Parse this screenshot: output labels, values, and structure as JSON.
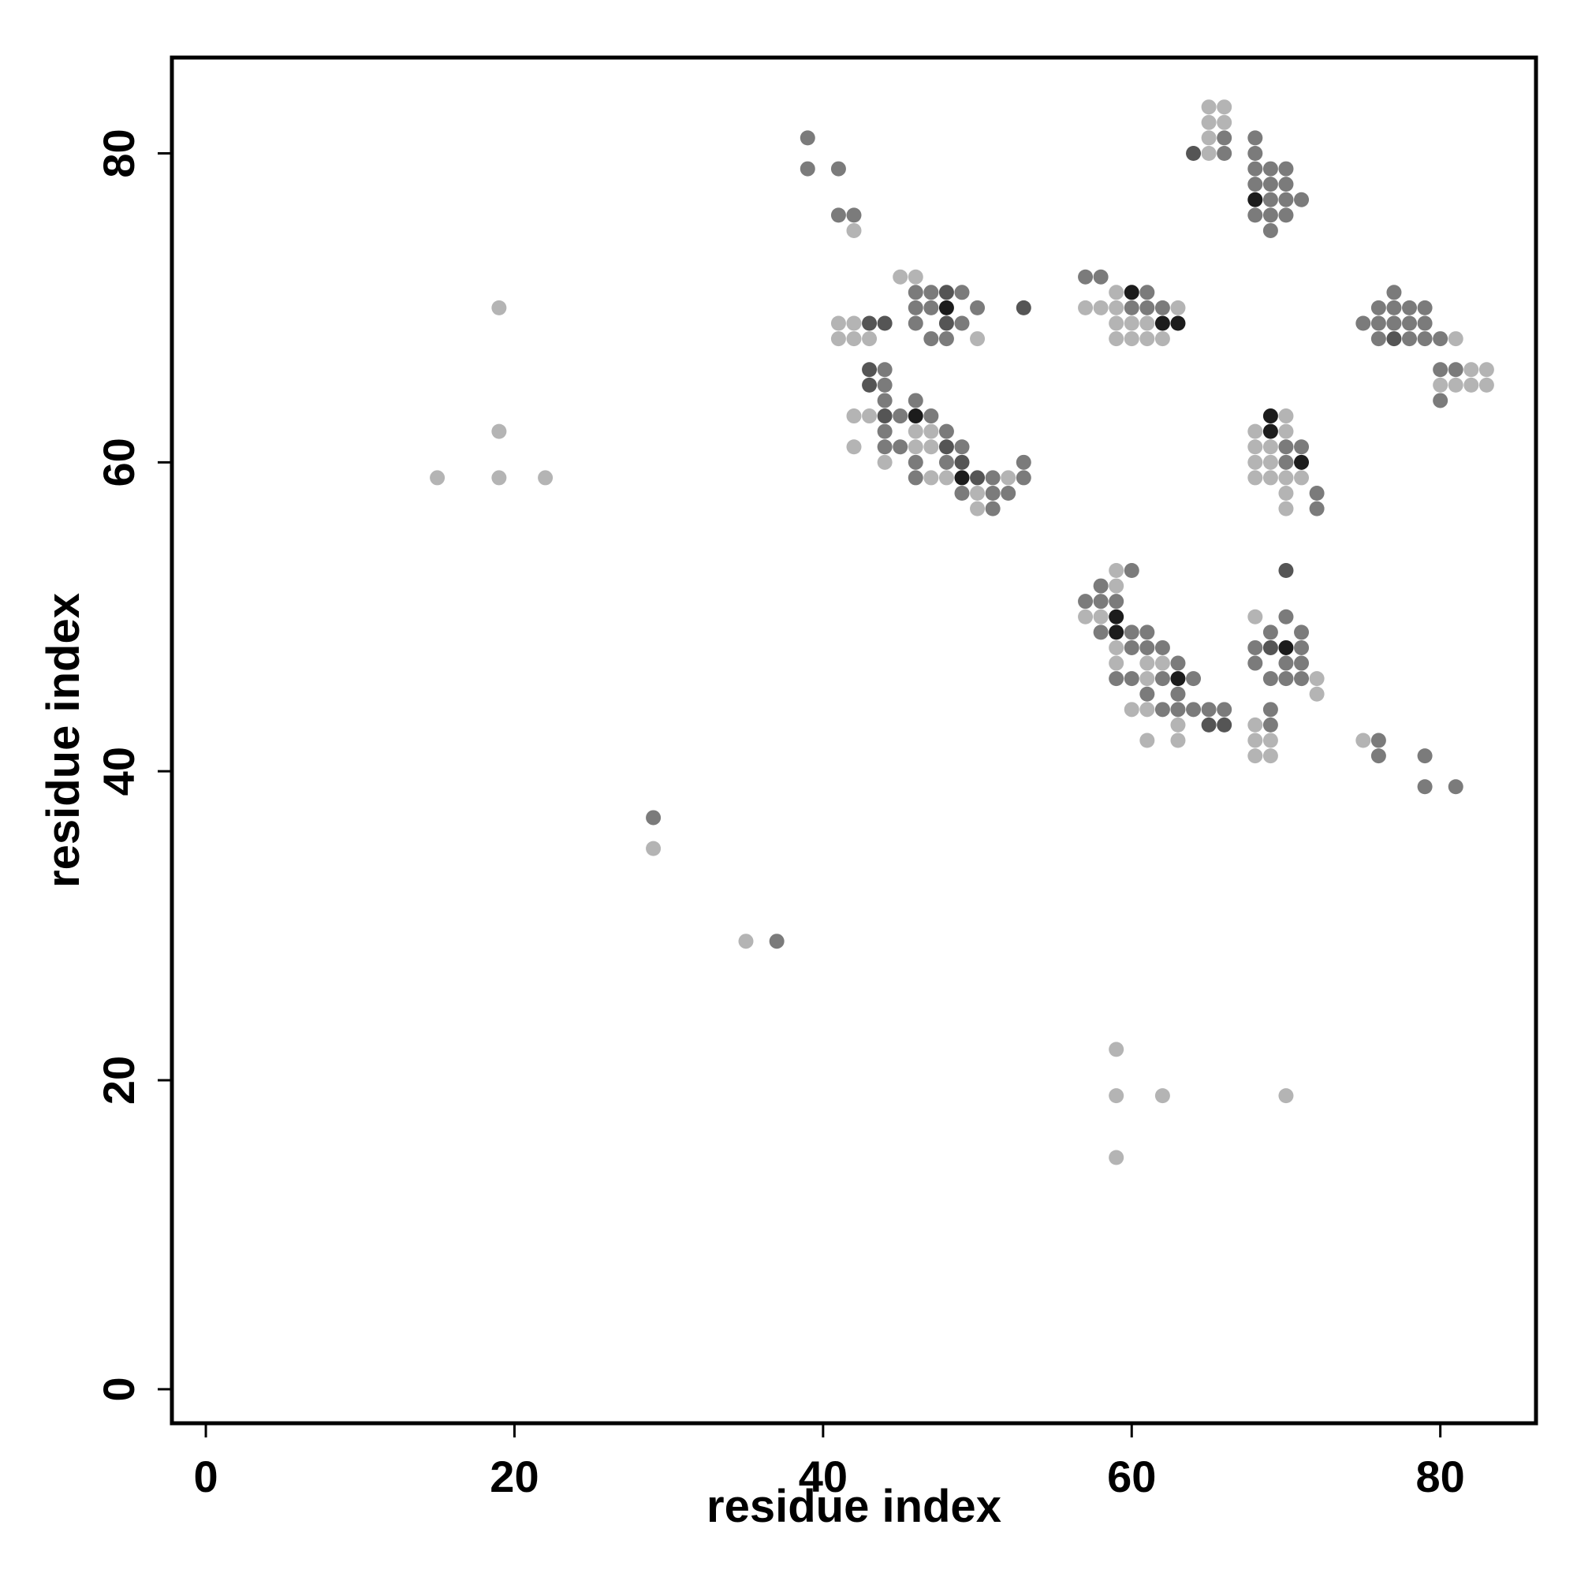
{
  "chart_data": {
    "type": "scatter",
    "title": "",
    "xlabel": "residue index",
    "ylabel": "residue index",
    "xlim": [
      -2.2,
      86.2
    ],
    "ylim": [
      -2.2,
      86.2
    ],
    "xticks": [
      0,
      20,
      40,
      60,
      80
    ],
    "yticks": [
      0,
      20,
      40,
      60,
      80
    ],
    "grid": false,
    "legend": "none",
    "point_shading_levels": {
      "1": "#b4b4b4",
      "2": "#7b7b7b",
      "3": "#555555",
      "4": "#1c1c1c"
    },
    "points": [
      [
        15,
        59,
        1
      ],
      [
        19,
        59,
        1
      ],
      [
        22,
        59,
        1
      ],
      [
        19,
        62,
        1
      ],
      [
        19,
        70,
        1
      ],
      [
        29,
        37,
        2
      ],
      [
        29,
        35,
        1
      ],
      [
        35,
        29,
        1
      ],
      [
        37,
        29,
        2
      ],
      [
        59,
        22,
        1
      ],
      [
        59,
        19,
        1
      ],
      [
        62,
        19,
        1
      ],
      [
        70,
        19,
        1
      ],
      [
        59,
        15,
        1
      ],
      [
        39,
        81,
        2
      ],
      [
        39,
        79,
        2
      ],
      [
        41,
        79,
        2
      ],
      [
        41,
        76,
        2
      ],
      [
        42,
        76,
        2
      ],
      [
        42,
        75,
        1
      ],
      [
        45,
        72,
        1
      ],
      [
        46,
        72,
        1
      ],
      [
        46,
        71,
        2
      ],
      [
        47,
        71,
        2
      ],
      [
        48,
        71,
        3
      ],
      [
        49,
        71,
        2
      ],
      [
        46,
        70,
        2
      ],
      [
        47,
        70,
        2
      ],
      [
        48,
        70,
        4
      ],
      [
        50,
        70,
        2
      ],
      [
        53,
        70,
        3
      ],
      [
        41,
        69,
        1
      ],
      [
        42,
        69,
        1
      ],
      [
        43,
        69,
        3
      ],
      [
        44,
        69,
        3
      ],
      [
        46,
        69,
        2
      ],
      [
        48,
        69,
        3
      ],
      [
        49,
        69,
        2
      ],
      [
        41,
        68,
        1
      ],
      [
        42,
        68,
        1
      ],
      [
        43,
        68,
        1
      ],
      [
        47,
        68,
        2
      ],
      [
        48,
        68,
        2
      ],
      [
        50,
        68,
        1
      ],
      [
        43,
        66,
        3
      ],
      [
        44,
        66,
        2
      ],
      [
        43,
        65,
        3
      ],
      [
        44,
        65,
        2
      ],
      [
        44,
        64,
        2
      ],
      [
        46,
        64,
        2
      ],
      [
        42,
        63,
        1
      ],
      [
        43,
        63,
        1
      ],
      [
        44,
        63,
        3
      ],
      [
        45,
        63,
        2
      ],
      [
        46,
        63,
        4
      ],
      [
        47,
        63,
        2
      ],
      [
        44,
        62,
        2
      ],
      [
        46,
        62,
        1
      ],
      [
        47,
        62,
        1
      ],
      [
        48,
        62,
        2
      ],
      [
        42,
        61,
        1
      ],
      [
        44,
        61,
        2
      ],
      [
        45,
        61,
        2
      ],
      [
        46,
        61,
        1
      ],
      [
        47,
        61,
        1
      ],
      [
        48,
        61,
        3
      ],
      [
        49,
        61,
        2
      ],
      [
        44,
        60,
        1
      ],
      [
        46,
        60,
        2
      ],
      [
        48,
        60,
        2
      ],
      [
        49,
        60,
        3
      ],
      [
        53,
        60,
        2
      ],
      [
        46,
        59,
        2
      ],
      [
        47,
        59,
        1
      ],
      [
        48,
        59,
        1
      ],
      [
        49,
        59,
        4
      ],
      [
        50,
        59,
        3
      ],
      [
        51,
        59,
        2
      ],
      [
        52,
        59,
        1
      ],
      [
        53,
        59,
        2
      ],
      [
        49,
        58,
        2
      ],
      [
        50,
        58,
        1
      ],
      [
        51,
        58,
        2
      ],
      [
        52,
        58,
        2
      ],
      [
        50,
        57,
        1
      ],
      [
        51,
        57,
        2
      ],
      [
        57,
        72,
        2
      ],
      [
        58,
        72,
        2
      ],
      [
        59,
        71,
        1
      ],
      [
        60,
        71,
        4
      ],
      [
        61,
        71,
        2
      ],
      [
        57,
        70,
        1
      ],
      [
        58,
        70,
        1
      ],
      [
        59,
        70,
        1
      ],
      [
        60,
        70,
        2
      ],
      [
        61,
        70,
        2
      ],
      [
        62,
        70,
        2
      ],
      [
        63,
        70,
        1
      ],
      [
        59,
        69,
        1
      ],
      [
        60,
        69,
        1
      ],
      [
        61,
        69,
        1
      ],
      [
        62,
        69,
        4
      ],
      [
        63,
        69,
        4
      ],
      [
        59,
        68,
        1
      ],
      [
        60,
        68,
        1
      ],
      [
        61,
        68,
        1
      ],
      [
        62,
        68,
        1
      ],
      [
        65,
        83,
        1
      ],
      [
        66,
        83,
        1
      ],
      [
        65,
        82,
        1
      ],
      [
        66,
        82,
        1
      ],
      [
        65,
        81,
        1
      ],
      [
        66,
        81,
        2
      ],
      [
        64,
        80,
        3
      ],
      [
        65,
        80,
        1
      ],
      [
        66,
        80,
        2
      ],
      [
        68,
        81,
        2
      ],
      [
        68,
        80,
        2
      ],
      [
        68,
        79,
        2
      ],
      [
        69,
        79,
        2
      ],
      [
        70,
        79,
        2
      ],
      [
        68,
        78,
        2
      ],
      [
        69,
        78,
        2
      ],
      [
        70,
        78,
        2
      ],
      [
        68,
        77,
        4
      ],
      [
        69,
        77,
        2
      ],
      [
        70,
        77,
        2
      ],
      [
        71,
        77,
        2
      ],
      [
        68,
        76,
        2
      ],
      [
        69,
        76,
        2
      ],
      [
        70,
        76,
        2
      ],
      [
        69,
        75,
        2
      ],
      [
        77,
        71,
        2
      ],
      [
        76,
        70,
        2
      ],
      [
        77,
        70,
        2
      ],
      [
        78,
        70,
        2
      ],
      [
        79,
        70,
        2
      ],
      [
        75,
        69,
        2
      ],
      [
        76,
        69,
        2
      ],
      [
        77,
        69,
        2
      ],
      [
        78,
        69,
        2
      ],
      [
        79,
        69,
        2
      ],
      [
        76,
        68,
        2
      ],
      [
        77,
        68,
        3
      ],
      [
        78,
        68,
        2
      ],
      [
        79,
        68,
        2
      ],
      [
        80,
        68,
        2
      ],
      [
        81,
        68,
        1
      ],
      [
        80,
        66,
        2
      ],
      [
        81,
        66,
        2
      ],
      [
        82,
        66,
        1
      ],
      [
        83,
        66,
        1
      ],
      [
        80,
        65,
        1
      ],
      [
        81,
        65,
        1
      ],
      [
        82,
        65,
        1
      ],
      [
        83,
        65,
        1
      ],
      [
        80,
        64,
        2
      ],
      [
        69,
        63,
        4
      ],
      [
        70,
        63,
        1
      ],
      [
        68,
        62,
        1
      ],
      [
        69,
        62,
        4
      ],
      [
        70,
        62,
        1
      ],
      [
        68,
        61,
        1
      ],
      [
        69,
        61,
        1
      ],
      [
        70,
        61,
        2
      ],
      [
        71,
        61,
        2
      ],
      [
        68,
        60,
        1
      ],
      [
        69,
        60,
        1
      ],
      [
        70,
        60,
        2
      ],
      [
        71,
        60,
        4
      ],
      [
        68,
        59,
        1
      ],
      [
        69,
        59,
        1
      ],
      [
        70,
        59,
        1
      ],
      [
        71,
        59,
        1
      ],
      [
        70,
        58,
        1
      ],
      [
        72,
        58,
        2
      ],
      [
        70,
        57,
        1
      ],
      [
        72,
        57,
        2
      ],
      [
        59,
        53,
        1
      ],
      [
        60,
        53,
        2
      ],
      [
        58,
        52,
        2
      ],
      [
        59,
        52,
        1
      ],
      [
        57,
        51,
        2
      ],
      [
        58,
        51,
        2
      ],
      [
        59,
        51,
        2
      ],
      [
        57,
        50,
        1
      ],
      [
        58,
        50,
        1
      ],
      [
        59,
        50,
        4
      ],
      [
        58,
        49,
        2
      ],
      [
        59,
        49,
        4
      ],
      [
        60,
        49,
        2
      ],
      [
        61,
        49,
        2
      ],
      [
        59,
        48,
        1
      ],
      [
        60,
        48,
        2
      ],
      [
        61,
        48,
        2
      ],
      [
        62,
        48,
        2
      ],
      [
        59,
        47,
        1
      ],
      [
        61,
        47,
        1
      ],
      [
        62,
        47,
        1
      ],
      [
        63,
        47,
        2
      ],
      [
        59,
        46,
        2
      ],
      [
        60,
        46,
        2
      ],
      [
        61,
        46,
        1
      ],
      [
        62,
        46,
        2
      ],
      [
        63,
        46,
        4
      ],
      [
        64,
        46,
        2
      ],
      [
        61,
        45,
        2
      ],
      [
        63,
        45,
        2
      ],
      [
        60,
        44,
        1
      ],
      [
        61,
        44,
        1
      ],
      [
        62,
        44,
        2
      ],
      [
        63,
        44,
        2
      ],
      [
        64,
        44,
        2
      ],
      [
        65,
        44,
        2
      ],
      [
        66,
        44,
        2
      ],
      [
        63,
        43,
        1
      ],
      [
        65,
        43,
        3
      ],
      [
        66,
        43,
        3
      ],
      [
        61,
        42,
        1
      ],
      [
        63,
        42,
        1
      ],
      [
        70,
        53,
        3
      ],
      [
        68,
        50,
        1
      ],
      [
        70,
        50,
        2
      ],
      [
        69,
        49,
        2
      ],
      [
        71,
        49,
        2
      ],
      [
        68,
        48,
        2
      ],
      [
        69,
        48,
        3
      ],
      [
        70,
        48,
        4
      ],
      [
        71,
        48,
        2
      ],
      [
        68,
        47,
        2
      ],
      [
        70,
        47,
        2
      ],
      [
        71,
        47,
        2
      ],
      [
        69,
        46,
        2
      ],
      [
        70,
        46,
        2
      ],
      [
        71,
        46,
        2
      ],
      [
        72,
        46,
        1
      ],
      [
        72,
        45,
        1
      ],
      [
        69,
        44,
        2
      ],
      [
        68,
        43,
        1
      ],
      [
        69,
        43,
        2
      ],
      [
        68,
        42,
        1
      ],
      [
        69,
        42,
        1
      ],
      [
        68,
        41,
        1
      ],
      [
        69,
        41,
        1
      ],
      [
        75,
        42,
        1
      ],
      [
        76,
        42,
        2
      ],
      [
        76,
        41,
        2
      ],
      [
        79,
        41,
        2
      ],
      [
        79,
        39,
        2
      ],
      [
        81,
        39,
        2
      ]
    ]
  }
}
